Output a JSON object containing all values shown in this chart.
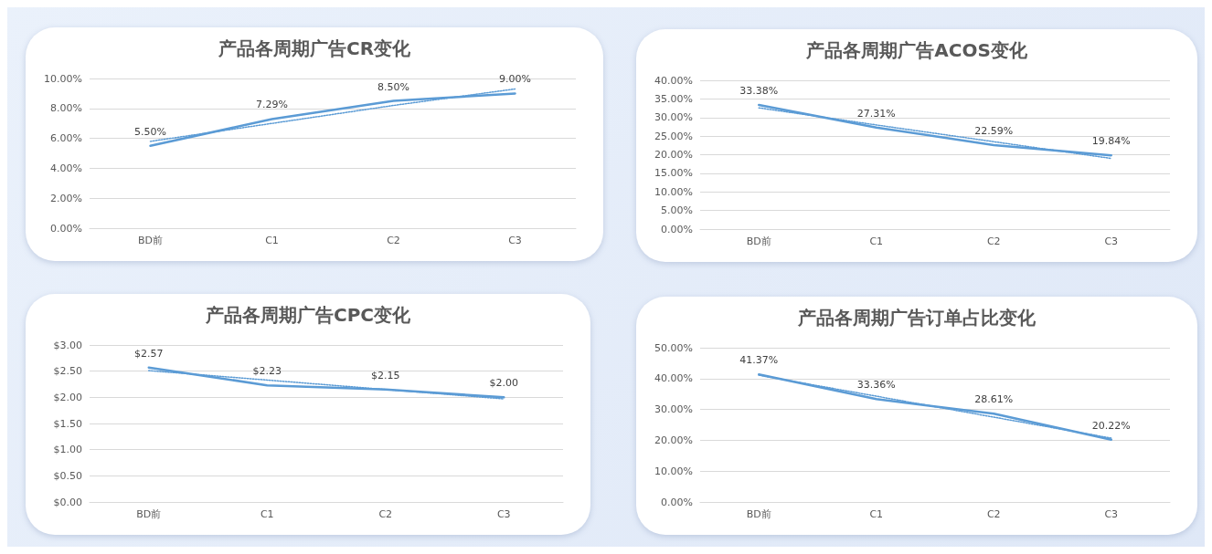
{
  "chart_data": [
    {
      "type": "line",
      "title": "产品各周期广告CR变化",
      "categories": [
        "BD前",
        "C1",
        "C2",
        "C3"
      ],
      "ylim": [
        0,
        10
      ],
      "yticks": [
        {
          "value": 0,
          "label": "0.00%"
        },
        {
          "value": 2,
          "label": "2.00%"
        },
        {
          "value": 4,
          "label": "4.00%"
        },
        {
          "value": 6,
          "label": "6.00%"
        },
        {
          "value": 8,
          "label": "8.00%"
        },
        {
          "value": 10,
          "label": "10.00%"
        }
      ],
      "grid": "y",
      "marker": "none",
      "series": [
        {
          "color": "#5b9bd5",
          "values": [
            5.5,
            7.29,
            8.5,
            9.0
          ],
          "value_labels": [
            "5.50%",
            "7.29%",
            "8.50%",
            "9.00%"
          ],
          "line_style": "solid"
        },
        {
          "color": "#5b9bd5",
          "values": [
            5.8,
            7.0,
            8.2,
            9.3
          ],
          "line_style": "dotted"
        }
      ]
    },
    {
      "type": "line",
      "title": "产品各周期广告ACOS变化",
      "categories": [
        "BD前",
        "C1",
        "C2",
        "C3"
      ],
      "ylim": [
        0,
        40
      ],
      "yticks": [
        {
          "value": 0,
          "label": "0.00%"
        },
        {
          "value": 5,
          "label": "5.00%"
        },
        {
          "value": 10,
          "label": "10.00%"
        },
        {
          "value": 15,
          "label": "15.00%"
        },
        {
          "value": 20,
          "label": "20.00%"
        },
        {
          "value": 25,
          "label": "25.00%"
        },
        {
          "value": 30,
          "label": "30.00%"
        },
        {
          "value": 35,
          "label": "35.00%"
        },
        {
          "value": 40,
          "label": "40.00%"
        }
      ],
      "grid": "y",
      "marker": "none",
      "series": [
        {
          "color": "#5b9bd5",
          "values": [
            33.38,
            27.31,
            22.59,
            19.84
          ],
          "value_labels": [
            "33.38%",
            "27.31%",
            "22.59%",
            "19.84%"
          ],
          "line_style": "solid"
        },
        {
          "color": "#5b9bd5",
          "values": [
            32.6,
            28.0,
            23.5,
            19.0
          ],
          "line_style": "dotted"
        }
      ]
    },
    {
      "type": "line",
      "title": "产品各周期广告CPC变化",
      "categories": [
        "BD前",
        "C1",
        "C2",
        "C3"
      ],
      "ylim": [
        0,
        3
      ],
      "yticks": [
        {
          "value": 0,
          "label": "$0.00"
        },
        {
          "value": 0.5,
          "label": "$0.50"
        },
        {
          "value": 1,
          "label": "$1.00"
        },
        {
          "value": 1.5,
          "label": "$1.50"
        },
        {
          "value": 2,
          "label": "$2.00"
        },
        {
          "value": 2.5,
          "label": "$2.50"
        },
        {
          "value": 3,
          "label": "$3.00"
        }
      ],
      "grid": "y",
      "marker": "none",
      "series": [
        {
          "color": "#5b9bd5",
          "values": [
            2.57,
            2.23,
            2.15,
            2.0
          ],
          "value_labels": [
            "$2.57",
            "$2.23",
            "$2.15",
            "$2.00"
          ],
          "line_style": "solid"
        },
        {
          "color": "#5b9bd5",
          "values": [
            2.51,
            2.33,
            2.15,
            1.97
          ],
          "line_style": "dotted"
        }
      ]
    },
    {
      "type": "line",
      "title": "产品各周期广告订单占比变化",
      "categories": [
        "BD前",
        "C1",
        "C2",
        "C3"
      ],
      "ylim": [
        0,
        50
      ],
      "yticks": [
        {
          "value": 0,
          "label": "0.00%"
        },
        {
          "value": 10,
          "label": "10.00%"
        },
        {
          "value": 20,
          "label": "20.00%"
        },
        {
          "value": 30,
          "label": "30.00%"
        },
        {
          "value": 40,
          "label": "40.00%"
        },
        {
          "value": 50,
          "label": "50.00%"
        }
      ],
      "grid": "y",
      "marker": "none",
      "series": [
        {
          "color": "#5b9bd5",
          "values": [
            41.37,
            33.36,
            28.61,
            20.22
          ],
          "value_labels": [
            "41.37%",
            "33.36%",
            "28.61%",
            "20.22%"
          ],
          "line_style": "solid"
        },
        {
          "color": "#5b9bd5",
          "values": [
            41.1,
            34.3,
            27.5,
            20.7
          ],
          "line_style": "dotted"
        }
      ]
    }
  ]
}
